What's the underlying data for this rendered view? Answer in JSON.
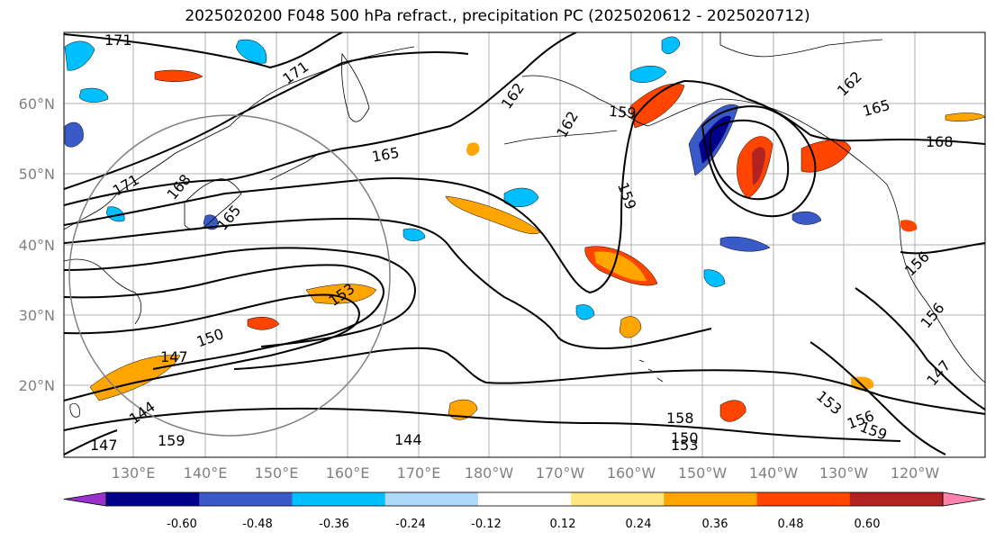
{
  "title": "2025020200 F048 500 hPa refract., precipitation PC (2025020612 - 2025020712)",
  "lat_labels": [
    "60°N",
    "50°N",
    "40°N",
    "30°N",
    "20°N"
  ],
  "lon_labels": [
    "130°E",
    "140°E",
    "150°E",
    "160°E",
    "170°E",
    "180°W",
    "170°W",
    "160°W",
    "150°W",
    "140°W",
    "130°W",
    "120°W"
  ],
  "colorbar": {
    "colors": [
      "#9932cc",
      "#00008b",
      "#3a5bc7",
      "#00bfff",
      "#add8f7",
      "#ffffff",
      "#ffe680",
      "#ffa500",
      "#ff4500",
      "#b22222",
      "#ff82ab"
    ],
    "tick_labels": [
      "-0.60",
      "-0.48",
      "-0.36",
      "-0.24",
      "-0.12",
      "0.12",
      "0.24",
      "0.36",
      "0.48",
      "0.60"
    ]
  },
  "contour_labels": [
    "171",
    "171",
    "171",
    "168",
    "165",
    "165",
    "162",
    "162",
    "159",
    "159",
    "165",
    "162",
    "168",
    "156",
    "153",
    "150",
    "147",
    "144",
    "159",
    "147",
    "144",
    "153",
    "150",
    "153",
    "156",
    "159",
    "147",
    "156",
    "158"
  ]
}
